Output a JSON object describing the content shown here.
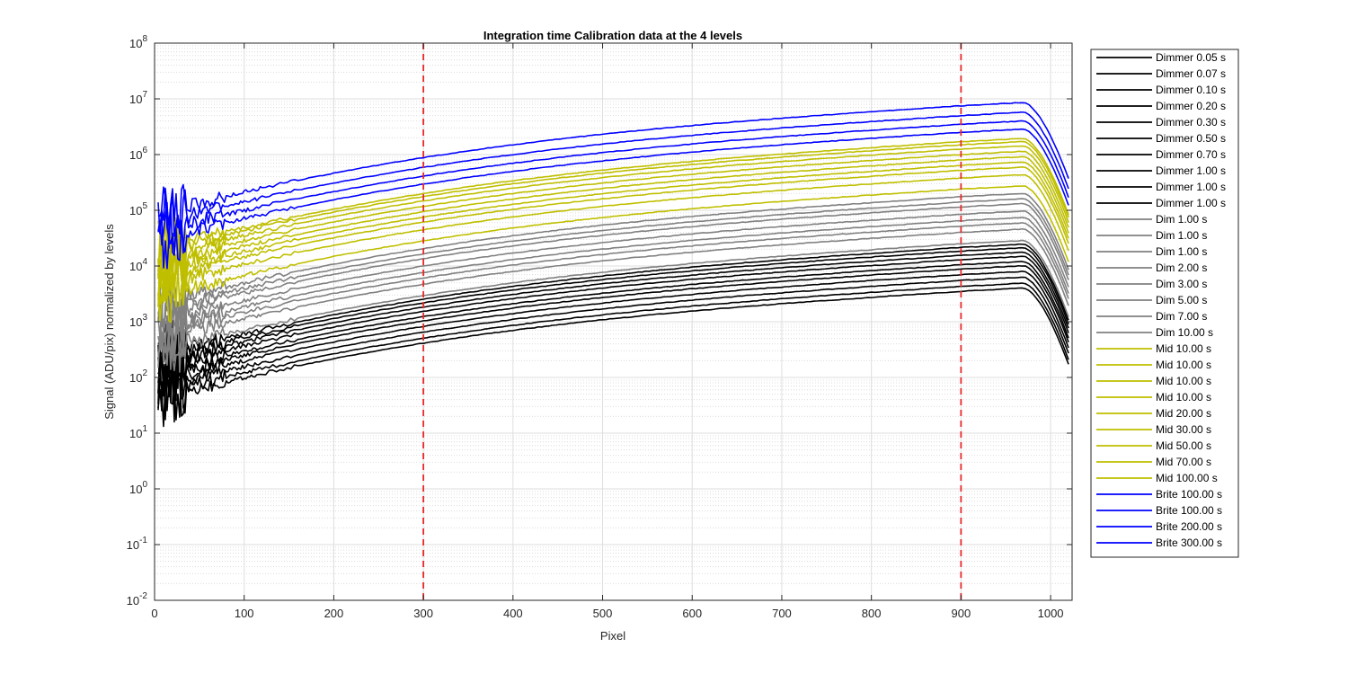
{
  "chart_data": {
    "type": "line",
    "title": "Integration time Calibration data at the 4 levels",
    "xlabel": "Pixel",
    "ylabel": "Signal (ADU/pix) normalized by levels",
    "xlim": [
      0,
      1024
    ],
    "ylim_log10": [
      -2,
      8
    ],
    "y_scale": "log",
    "x_ticks": [
      "0",
      "100",
      "200",
      "300",
      "400",
      "500",
      "600",
      "700",
      "800",
      "900",
      "1000"
    ],
    "y_tick_exponents": [
      "-2",
      "-1",
      "0",
      "1",
      "2",
      "3",
      "4",
      "5",
      "6",
      "7",
      "8"
    ],
    "y_tick_base": "10",
    "grid": true,
    "minor_grid": true,
    "legend_position": "outside-right",
    "vertical_reference_lines": [
      {
        "x": 300,
        "color": "#e8292b",
        "style": "dashed"
      },
      {
        "x": 900,
        "color": "#e8292b",
        "style": "dashed"
      }
    ],
    "series": [
      {
        "name": "Dimmer 0.05 s",
        "color": "#000000",
        "value_at_900": 3500
      },
      {
        "name": "Dimmer 0.07 s",
        "color": "#000000",
        "value_at_900": 4300
      },
      {
        "name": "Dimmer 0.10 s",
        "color": "#000000",
        "value_at_900": 5500
      },
      {
        "name": "Dimmer 0.20 s",
        "color": "#000000",
        "value_at_900": 7000
      },
      {
        "name": "Dimmer 0.30 s",
        "color": "#000000",
        "value_at_900": 8800
      },
      {
        "name": "Dimmer 0.50 s",
        "color": "#000000",
        "value_at_900": 10500
      },
      {
        "name": "Dimmer 0.70 s",
        "color": "#000000",
        "value_at_900": 13000
      },
      {
        "name": "Dimmer 1.00 s",
        "color": "#000000",
        "value_at_900": 15500
      },
      {
        "name": "Dimmer 1.00 s",
        "color": "#000000",
        "value_at_900": 18500
      },
      {
        "name": "Dimmer 1.00 s",
        "color": "#000000",
        "value_at_900": 21500
      },
      {
        "name": "Dim 1.00 s",
        "color": "#808080",
        "value_at_900": 25000
      },
      {
        "name": "Dim 1.00 s",
        "color": "#808080",
        "value_at_900": 40000
      },
      {
        "name": "Dim 1.00 s",
        "color": "#808080",
        "value_at_900": 52000
      },
      {
        "name": "Dim 2.00 s",
        "color": "#808080",
        "value_at_900": 65000
      },
      {
        "name": "Dim 3.00 s",
        "color": "#808080",
        "value_at_900": 85000
      },
      {
        "name": "Dim 5.00 s",
        "color": "#808080",
        "value_at_900": 115000
      },
      {
        "name": "Dim 7.00 s",
        "color": "#808080",
        "value_at_900": 140000
      },
      {
        "name": "Dim 10.00 s",
        "color": "#808080",
        "value_at_900": 175000
      },
      {
        "name": "Mid 10.00 s",
        "color": "#bfbf00",
        "value_at_900": 240000
      },
      {
        "name": "Mid 10.00 s",
        "color": "#bfbf00",
        "value_at_900": 380000
      },
      {
        "name": "Mid 10.00 s",
        "color": "#bfbf00",
        "value_at_900": 520000
      },
      {
        "name": "Mid 10.00 s",
        "color": "#bfbf00",
        "value_at_900": 640000
      },
      {
        "name": "Mid 20.00 s",
        "color": "#bfbf00",
        "value_at_900": 800000
      },
      {
        "name": "Mid 30.00 s",
        "color": "#bfbf00",
        "value_at_900": 1000000
      },
      {
        "name": "Mid 50.00 s",
        "color": "#bfbf00",
        "value_at_900": 1250000
      },
      {
        "name": "Mid 70.00 s",
        "color": "#bfbf00",
        "value_at_900": 1500000
      },
      {
        "name": "Mid 100.00 s",
        "color": "#bfbf00",
        "value_at_900": 1700000
      },
      {
        "name": "Brite 100.00 s",
        "color": "#0000ff",
        "value_at_900": 2500000
      },
      {
        "name": "Brite 100.00 s",
        "color": "#0000ff",
        "value_at_900": 3500000
      },
      {
        "name": "Brite 200.00 s",
        "color": "#0000ff",
        "value_at_900": 5000000
      },
      {
        "name": "Brite 300.00 s",
        "color": "#0000ff",
        "value_at_900": 7500000
      }
    ]
  }
}
